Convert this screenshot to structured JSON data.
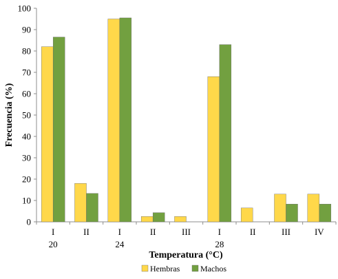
{
  "chart_data": {
    "type": "bar",
    "xlabel": "Temperatura (°C)",
    "ylabel": "Frecuencia (%)",
    "ylim": [
      0,
      100
    ],
    "yticks": [
      0,
      10,
      20,
      30,
      40,
      50,
      60,
      70,
      80,
      90,
      100
    ],
    "categories": [
      "I",
      "II",
      "I",
      "II",
      "III",
      "I",
      "II",
      "III",
      "IV"
    ],
    "temperature_groups": [
      {
        "label": "20",
        "under_category": 0
      },
      {
        "label": "24",
        "under_category": 2
      },
      {
        "label": "28",
        "under_category": 5
      }
    ],
    "series": [
      {
        "name": "Hembras",
        "color": "#ffd84a",
        "values": [
          82,
          18,
          95,
          2.5,
          2.5,
          68,
          6.5,
          13,
          13
        ]
      },
      {
        "name": "Machos",
        "color": "#72a040",
        "values": [
          86.5,
          13.3,
          95.5,
          4.3,
          0,
          83,
          0,
          8.3,
          8.3
        ]
      }
    ],
    "legend_position": "bottom-center",
    "grid": false
  }
}
